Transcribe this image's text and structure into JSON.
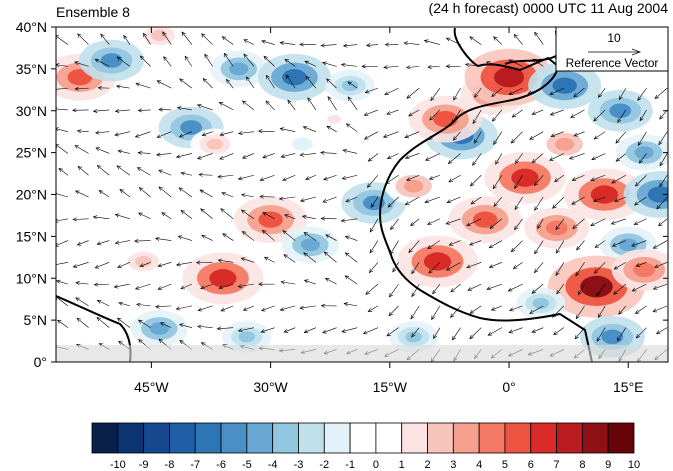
{
  "chart_data": {
    "type": "heatmap",
    "title_left": "Ensemble 8",
    "title_right": "(24 h forecast) 0000 UTC 11 Aug 2004",
    "x_ticks": [
      {
        "lon": -45,
        "label": "45°W"
      },
      {
        "lon": -30,
        "label": "30°W"
      },
      {
        "lon": -15,
        "label": "15°W"
      },
      {
        "lon": 0,
        "label": "0°"
      },
      {
        "lon": 15,
        "label": "15°E"
      }
    ],
    "y_ticks": [
      {
        "lat": 0,
        "label": "0°"
      },
      {
        "lat": 5,
        "label": "5°N"
      },
      {
        "lat": 10,
        "label": "10°N"
      },
      {
        "lat": 15,
        "label": "15°N"
      },
      {
        "lat": 20,
        "label": "20°N"
      },
      {
        "lat": 25,
        "label": "25°N"
      },
      {
        "lat": 30,
        "label": "30°N"
      },
      {
        "lat": 35,
        "label": "35°N"
      },
      {
        "lat": 40,
        "label": "40°N"
      }
    ],
    "lon_range": [
      -57,
      20
    ],
    "lat_range": [
      0,
      40
    ],
    "reference_vector": {
      "value": "10",
      "label": "Reference Vector"
    },
    "colorbar": {
      "labels": [
        "-10",
        "-9",
        "-8",
        "-7",
        "-6",
        "-5",
        "-4",
        "-3",
        "-2",
        "-1",
        "0",
        "1",
        "2",
        "3",
        "4",
        "5",
        "6",
        "7",
        "8",
        "9",
        "10"
      ],
      "colors": [
        "#08204a",
        "#0b3470",
        "#14488f",
        "#1f5fa8",
        "#2e75b6",
        "#4a8fc6",
        "#6aa9d3",
        "#93c6df",
        "#c0e0ec",
        "#e3f2f8",
        "#ffffff",
        "#ffffff",
        "#fbe3e3",
        "#f8c5bd",
        "#f6a08e",
        "#f47a65",
        "#ee5442",
        "#d92b28",
        "#b91b1f",
        "#8c1016",
        "#660308"
      ]
    },
    "anomalies": [
      {
        "lon": -54,
        "lat": 34,
        "value": 6
      },
      {
        "lon": -50,
        "lat": 36,
        "value": -5
      },
      {
        "lon": -44,
        "lat": 39,
        "value": 3
      },
      {
        "lon": -40,
        "lat": 28,
        "value": -5
      },
      {
        "lon": -34,
        "lat": 35,
        "value": -4
      },
      {
        "lon": -27,
        "lat": 34,
        "value": -6
      },
      {
        "lon": -37,
        "lat": 26,
        "value": 3
      },
      {
        "lon": -30,
        "lat": 17,
        "value": 6
      },
      {
        "lon": -36,
        "lat": 10,
        "value": 7
      },
      {
        "lon": -46,
        "lat": 12,
        "value": 3
      },
      {
        "lon": -44,
        "lat": 4,
        "value": -4
      },
      {
        "lon": -33,
        "lat": 3,
        "value": -3
      },
      {
        "lon": -20,
        "lat": 33,
        "value": -3
      },
      {
        "lon": -22,
        "lat": 29,
        "value": 2
      },
      {
        "lon": -26,
        "lat": 26,
        "value": -1
      },
      {
        "lon": -17,
        "lat": 19,
        "value": -5
      },
      {
        "lon": -25,
        "lat": 14,
        "value": -4
      },
      {
        "lon": -12,
        "lat": 21,
        "value": 4
      },
      {
        "lon": -6,
        "lat": 27,
        "value": -6
      },
      {
        "lon": -8,
        "lat": 29,
        "value": 6
      },
      {
        "lon": -2,
        "lat": 32,
        "value": 5
      },
      {
        "lon": 0,
        "lat": 34,
        "value": 8
      },
      {
        "lon": 7,
        "lat": 33,
        "value": -6
      },
      {
        "lon": 14,
        "lat": 30,
        "value": -5
      },
      {
        "lon": 2,
        "lat": 22,
        "value": 7
      },
      {
        "lon": -3,
        "lat": 17,
        "value": 6
      },
      {
        "lon": -9,
        "lat": 12,
        "value": 7
      },
      {
        "lon": 6,
        "lat": 16,
        "value": 5
      },
      {
        "lon": 12,
        "lat": 20,
        "value": 7
      },
      {
        "lon": 15,
        "lat": 14,
        "value": -4
      },
      {
        "lon": 11,
        "lat": 9,
        "value": 9
      },
      {
        "lon": 17,
        "lat": 11,
        "value": 5
      },
      {
        "lon": 4,
        "lat": 7,
        "value": -3
      },
      {
        "lon": 13,
        "lat": 3,
        "value": -5
      },
      {
        "lon": -12,
        "lat": 3,
        "value": -3
      },
      {
        "lon": 7,
        "lat": 26,
        "value": 4
      },
      {
        "lon": 17,
        "lat": 25,
        "value": -4
      },
      {
        "lon": 19,
        "lat": 20,
        "value": -6
      }
    ]
  }
}
